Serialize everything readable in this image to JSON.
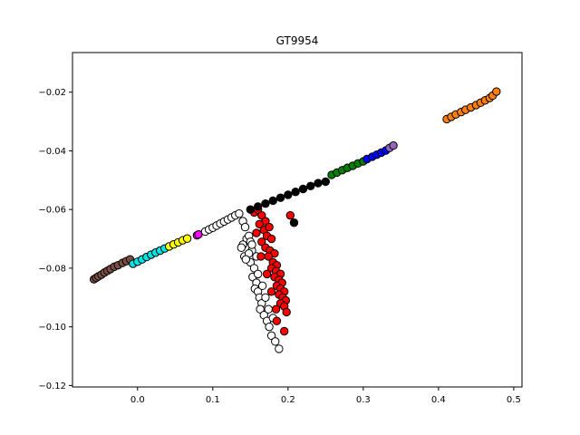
{
  "chart_data": {
    "type": "scatter",
    "title": "GT9954",
    "xlabel": "",
    "ylabel": "",
    "xlim": [
      -0.0865,
      0.511
    ],
    "ylim": [
      -0.1205,
      -0.0065
    ],
    "xticks": [
      0.0,
      0.1,
      0.2,
      0.3,
      0.4,
      0.5
    ],
    "xtick_labels": [
      "0.0",
      "0.1",
      "0.2",
      "0.3",
      "0.4",
      "0.5"
    ],
    "yticks": [
      -0.12,
      -0.1,
      -0.08,
      -0.06,
      -0.04,
      -0.02
    ],
    "ytick_labels": [
      "−0.12",
      "−0.10",
      "−0.08",
      "−0.06",
      "−0.04",
      "−0.02"
    ],
    "grid": false,
    "legend": "none",
    "marker_edge_color": "#000000",
    "series": [
      {
        "color": "#7b4f46",
        "points": [
          [
            -0.058,
            -0.0838
          ],
          [
            -0.055,
            -0.0833
          ],
          [
            -0.052,
            -0.0828
          ],
          [
            -0.048,
            -0.0822
          ],
          [
            -0.044,
            -0.0815
          ],
          [
            -0.04,
            -0.0809
          ],
          [
            -0.036,
            -0.0803
          ],
          [
            -0.031,
            -0.0795
          ],
          [
            -0.026,
            -0.079
          ],
          [
            -0.02,
            -0.0782
          ],
          [
            -0.015,
            -0.0776
          ],
          [
            -0.01,
            -0.077
          ]
        ]
      },
      {
        "color": "#00e5e5",
        "points": [
          [
            -0.006,
            -0.0785
          ],
          [
            0.0,
            -0.0778
          ],
          [
            0.006,
            -0.077
          ],
          [
            0.012,
            -0.0762
          ],
          [
            0.018,
            -0.0754
          ],
          [
            0.024,
            -0.0747
          ],
          [
            0.03,
            -0.074
          ],
          [
            0.036,
            -0.0733
          ]
        ]
      },
      {
        "color": "#ffff00",
        "points": [
          [
            0.042,
            -0.0726
          ],
          [
            0.048,
            -0.0719
          ],
          [
            0.054,
            -0.0712
          ],
          [
            0.06,
            -0.0705
          ],
          [
            0.066,
            -0.0699
          ]
        ]
      },
      {
        "color": "#ff00ff",
        "points": [
          [
            0.079,
            -0.0688
          ],
          [
            0.081,
            -0.0685
          ]
        ]
      },
      {
        "color": "#ffffff",
        "points": [
          [
            0.09,
            -0.0675
          ],
          [
            0.095,
            -0.0668
          ],
          [
            0.1,
            -0.0662
          ],
          [
            0.105,
            -0.0655
          ],
          [
            0.11,
            -0.0648
          ],
          [
            0.115,
            -0.0641
          ],
          [
            0.12,
            -0.0634
          ],
          [
            0.125,
            -0.0627
          ],
          [
            0.13,
            -0.062
          ],
          [
            0.135,
            -0.0614
          ],
          [
            0.14,
            -0.064
          ],
          [
            0.143,
            -0.066
          ],
          [
            0.145,
            -0.07
          ],
          [
            0.14,
            -0.072
          ],
          [
            0.138,
            -0.073
          ],
          [
            0.142,
            -0.076
          ],
          [
            0.148,
            -0.069
          ],
          [
            0.15,
            -0.071
          ],
          [
            0.152,
            -0.074
          ],
          [
            0.15,
            -0.078
          ],
          [
            0.155,
            -0.08
          ],
          [
            0.153,
            -0.083
          ],
          [
            0.158,
            -0.085
          ],
          [
            0.156,
            -0.087
          ],
          [
            0.16,
            -0.088
          ],
          [
            0.162,
            -0.09
          ],
          [
            0.165,
            -0.092
          ],
          [
            0.163,
            -0.094
          ],
          [
            0.168,
            -0.096
          ],
          [
            0.172,
            -0.098
          ],
          [
            0.175,
            -0.1
          ],
          [
            0.178,
            -0.103
          ],
          [
            0.183,
            -0.105
          ],
          [
            0.188,
            -0.1075
          ],
          [
            0.148,
            -0.075
          ],
          [
            0.144,
            -0.077
          ],
          [
            0.16,
            -0.082
          ],
          [
            0.166,
            -0.086
          ],
          [
            0.17,
            -0.09
          ],
          [
            0.174,
            -0.094
          ],
          [
            0.18,
            -0.097
          ],
          [
            0.158,
            -0.076
          ],
          [
            0.152,
            -0.072
          ]
        ]
      },
      {
        "color": "#ff0000",
        "points": [
          [
            0.155,
            -0.061
          ],
          [
            0.16,
            -0.06
          ],
          [
            0.165,
            -0.062
          ],
          [
            0.17,
            -0.064
          ],
          [
            0.162,
            -0.065
          ],
          [
            0.168,
            -0.067
          ],
          [
            0.175,
            -0.066
          ],
          [
            0.172,
            -0.069
          ],
          [
            0.178,
            -0.07
          ],
          [
            0.165,
            -0.071
          ],
          [
            0.17,
            -0.073
          ],
          [
            0.176,
            -0.074
          ],
          [
            0.182,
            -0.075
          ],
          [
            0.174,
            -0.076
          ],
          [
            0.18,
            -0.078
          ],
          [
            0.185,
            -0.079
          ],
          [
            0.178,
            -0.08
          ],
          [
            0.184,
            -0.081
          ],
          [
            0.19,
            -0.082
          ],
          [
            0.182,
            -0.083
          ],
          [
            0.188,
            -0.084
          ],
          [
            0.192,
            -0.085
          ],
          [
            0.185,
            -0.086
          ],
          [
            0.19,
            -0.087
          ],
          [
            0.195,
            -0.088
          ],
          [
            0.188,
            -0.089
          ],
          [
            0.193,
            -0.09
          ],
          [
            0.197,
            -0.091
          ],
          [
            0.19,
            -0.092
          ],
          [
            0.195,
            -0.093
          ],
          [
            0.198,
            -0.095
          ],
          [
            0.185,
            -0.098
          ],
          [
            0.195,
            -0.1015
          ],
          [
            0.203,
            -0.062
          ],
          [
            0.158,
            -0.068
          ],
          [
            0.164,
            -0.076
          ],
          [
            0.172,
            -0.082
          ],
          [
            0.178,
            -0.088
          ],
          [
            0.184,
            -0.094
          ]
        ]
      },
      {
        "color": "#000000",
        "points": [
          [
            0.15,
            -0.06
          ],
          [
            0.16,
            -0.059
          ],
          [
            0.17,
            -0.058
          ],
          [
            0.18,
            -0.057
          ],
          [
            0.19,
            -0.056
          ],
          [
            0.2,
            -0.055
          ],
          [
            0.21,
            -0.054
          ],
          [
            0.22,
            -0.053
          ],
          [
            0.23,
            -0.052
          ],
          [
            0.24,
            -0.051
          ],
          [
            0.25,
            -0.0505
          ],
          [
            0.208,
            -0.0645
          ]
        ]
      },
      {
        "color": "#008000",
        "points": [
          [
            0.258,
            -0.0482
          ],
          [
            0.265,
            -0.0474
          ],
          [
            0.272,
            -0.0466
          ],
          [
            0.279,
            -0.0458
          ],
          [
            0.286,
            -0.0451
          ],
          [
            0.293,
            -0.0443
          ],
          [
            0.3,
            -0.0436
          ]
        ]
      },
      {
        "color": "#0000ff",
        "points": [
          [
            0.305,
            -0.0428
          ],
          [
            0.312,
            -0.042
          ],
          [
            0.318,
            -0.0413
          ],
          [
            0.324,
            -0.0406
          ],
          [
            0.33,
            -0.0399
          ]
        ]
      },
      {
        "color": "#9467bd",
        "points": [
          [
            0.335,
            -0.039
          ],
          [
            0.34,
            -0.0382
          ]
        ]
      },
      {
        "color": "#ff7f0e",
        "points": [
          [
            0.411,
            -0.0292
          ],
          [
            0.417,
            -0.0284
          ],
          [
            0.423,
            -0.0276
          ],
          [
            0.43,
            -0.0268
          ],
          [
            0.436,
            -0.026
          ],
          [
            0.443,
            -0.0252
          ],
          [
            0.45,
            -0.0244
          ],
          [
            0.456,
            -0.0236
          ],
          [
            0.462,
            -0.0228
          ],
          [
            0.468,
            -0.022
          ],
          [
            0.472,
            -0.0212
          ],
          [
            0.477,
            -0.0198
          ]
        ]
      }
    ]
  }
}
